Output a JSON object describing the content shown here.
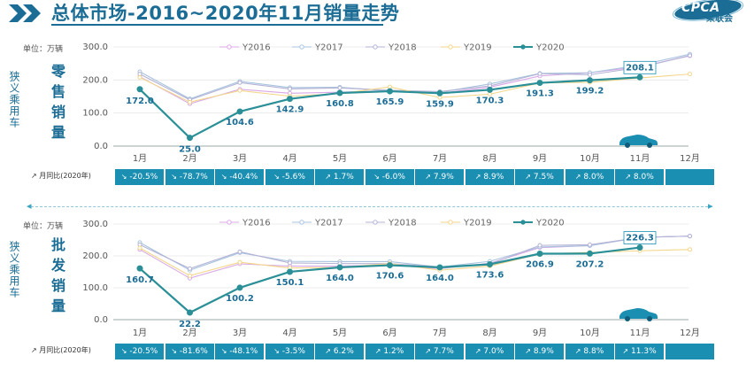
{
  "header": {
    "title": "总体市场-2016~2020年11月销量走势",
    "logo_text": "CPCA",
    "logo_cn": "乘联会"
  },
  "colors": {
    "Y2016": "#d9a8e6",
    "Y2017": "#a9c3de",
    "Y2018": "#b3b3d6",
    "Y2019": "#f3d68a",
    "Y2020": "#2a8f96",
    "band": "#1b8fb2",
    "title": "#1b6d95"
  },
  "months": [
    "1月",
    "2月",
    "3月",
    "4月",
    "5月",
    "6月",
    "7月",
    "8月",
    "9月",
    "10月",
    "11月",
    "12月"
  ],
  "chart_data": [
    {
      "type": "line",
      "title": "零售销量",
      "side_label": "狭义乘用车",
      "unit": "单位：万辆",
      "ylim": [
        0,
        300
      ],
      "yticks": [
        "0.0",
        "100.0",
        "200.0",
        "300.0"
      ],
      "categories": [
        "1月",
        "2月",
        "3月",
        "4月",
        "5月",
        "6月",
        "7月",
        "8月",
        "9月",
        "10月",
        "11月",
        "12月"
      ],
      "series": [
        {
          "name": "Y2016",
          "values": [
            210,
            128,
            172,
            160,
            163,
            168,
            160,
            178,
            212,
            222,
            240,
            273
          ]
        },
        {
          "name": "Y2017",
          "values": [
            225,
            143,
            196,
            177,
            178,
            167,
            163,
            188,
            220,
            222,
            245,
            278
          ]
        },
        {
          "name": "Y2018",
          "values": [
            218,
            140,
            192,
            173,
            176,
            169,
            165,
            182,
            219,
            216,
            238,
            274
          ]
        },
        {
          "name": "Y2019",
          "values": [
            208,
            133,
            168,
            151,
            159,
            179,
            147,
            157,
            191,
            193,
            206,
            218
          ]
        },
        {
          "name": "Y2020",
          "values": [
            172.0,
            25.0,
            104.6,
            142.9,
            160.8,
            165.9,
            159.9,
            170.3,
            191.3,
            199.2,
            208.1,
            null
          ]
        }
      ],
      "labels_2020": [
        "172.0",
        "25.0",
        "104.6",
        "142.9",
        "160.8",
        "165.9",
        "159.9",
        "170.3",
        "191.3",
        "199.2",
        "208.1"
      ],
      "yoy_label": "月同比(2020年)",
      "yoy": [
        "-20.5%",
        "-78.7%",
        "-40.4%",
        "-5.6%",
        "1.7%",
        "-6.0%",
        "7.9%",
        "8.9%",
        "7.5%",
        "8.0%",
        "8.0%",
        ""
      ]
    },
    {
      "type": "line",
      "title": "批发销量",
      "side_label": "狭义乘用车",
      "unit": "单位：万辆",
      "ylim": [
        0,
        300
      ],
      "yticks": [
        "0.0",
        "100.0",
        "200.0",
        "300.0"
      ],
      "categories": [
        "1月",
        "2月",
        "3月",
        "4月",
        "5月",
        "6月",
        "7月",
        "8月",
        "9月",
        "10月",
        "11月",
        "12月"
      ],
      "series": [
        {
          "name": "Y2016",
          "values": [
            220,
            130,
            175,
            168,
            168,
            172,
            160,
            177,
            226,
            232,
            258,
            262
          ]
        },
        {
          "name": "Y2017",
          "values": [
            242,
            155,
            210,
            183,
            182,
            182,
            165,
            183,
            228,
            232,
            258,
            262
          ]
        },
        {
          "name": "Y2018",
          "values": [
            235,
            160,
            213,
            178,
            176,
            176,
            165,
            174,
            233,
            235,
            258,
            262
          ]
        },
        {
          "name": "Y2019",
          "values": [
            225,
            138,
            180,
            162,
            164,
            176,
            155,
            168,
            206,
            211,
            216,
            220
          ]
        },
        {
          "name": "Y2020",
          "values": [
            160.7,
            22.2,
            100.2,
            150.1,
            164.0,
            170.6,
            164.0,
            173.6,
            206.9,
            207.2,
            226.3,
            null
          ]
        }
      ],
      "labels_2020": [
        "160.7",
        "22.2",
        "100.2",
        "150.1",
        "164.0",
        "170.6",
        "164.0",
        "173.6",
        "206.9",
        "207.2",
        "226.3"
      ],
      "yoy_label": "月同比(2020年)",
      "yoy": [
        "-20.5%",
        "-81.6%",
        "-48.1%",
        "-3.5%",
        "6.2%",
        "1.2%",
        "7.7%",
        "7.0%",
        "8.9%",
        "8.8%",
        "11.3%",
        ""
      ]
    }
  ]
}
